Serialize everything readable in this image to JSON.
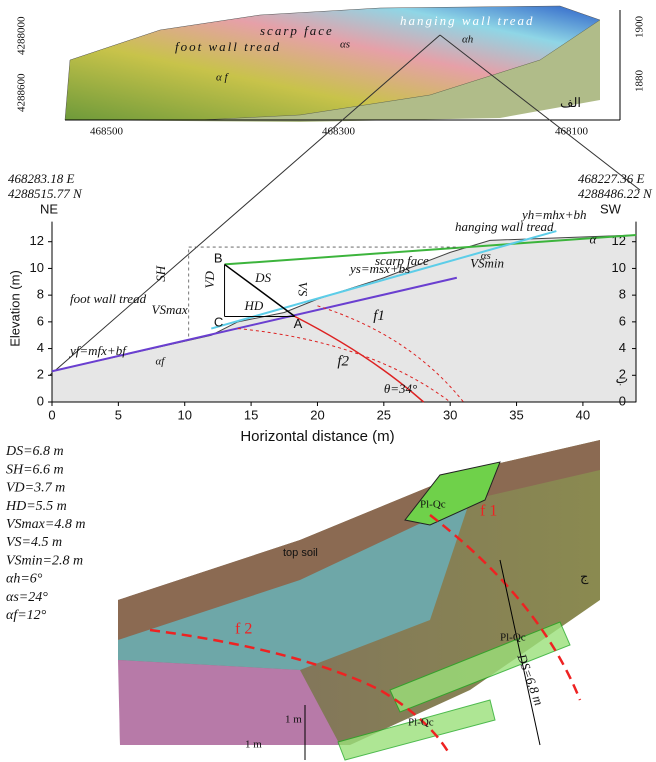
{
  "panel_a": {
    "hanging_wall": "hanging wall tread",
    "scarp": "scarp face",
    "foot_wall": "foot wall tread",
    "alpha_s": "αs",
    "alpha_h": "αh",
    "alpha_f": "α f",
    "label": "الف",
    "x_ticks": [
      "468500",
      "468300",
      "468100"
    ],
    "y_ticks_left": [
      "4288000",
      "4288600"
    ],
    "y_ticks_right": [
      "1900",
      "1880"
    ]
  },
  "panel_b": {
    "coord_left": [
      "468283.18 E",
      "4288515.77 N"
    ],
    "coord_right": [
      "468227.36 E",
      "4288486.22 N"
    ],
    "dir_left": "NE",
    "dir_right": "SW",
    "ylabel": "Elevation (m)",
    "xlabel": "Horizontal distance (m)",
    "label": "ب",
    "xlim": [
      0,
      44
    ],
    "ylim": [
      0,
      14
    ],
    "xticks": [
      0,
      5,
      10,
      15,
      20,
      25,
      30,
      35,
      40
    ],
    "yticks": [
      0,
      2,
      4,
      6,
      8,
      10,
      12
    ],
    "hanging_wall": "hanging wall tread",
    "scarp": "scarp face",
    "foot_wall": "foot wall tread",
    "eq_h": "yh=mhx+bh",
    "eq_s": "ys=msx+bs",
    "eq_f": "yf=mfx+bf",
    "points": [
      "B",
      "C",
      "A"
    ],
    "SH": "SH",
    "VD": "VD",
    "DS": "DS",
    "VS": "VS",
    "HD": "HD",
    "VSmax": "VSmax",
    "VSmin": "VSmin",
    "alpha_h": "α",
    "alpha_s": "αs",
    "alpha_f": "αf",
    "f1": "f1",
    "f2": "f2",
    "theta": "θ=34°"
  },
  "params": [
    "DS=6.8 m",
    "SH=6.6 m",
    "VD=3.7 m",
    "HD=5.5 m",
    "VSmax=4.8 m",
    "VS=4.5 m",
    "VSmin=2.8 m",
    "αh=6°",
    "αs=24°",
    "αf=12°"
  ],
  "panel_c": {
    "top_soil": "top soil",
    "unit": "Pl-Qc",
    "f1": "f 1",
    "f2": "f 2",
    "ds": "DS=6.8 m",
    "scale_v": "1 m",
    "scale_h": "1 m",
    "label": "ج"
  }
}
